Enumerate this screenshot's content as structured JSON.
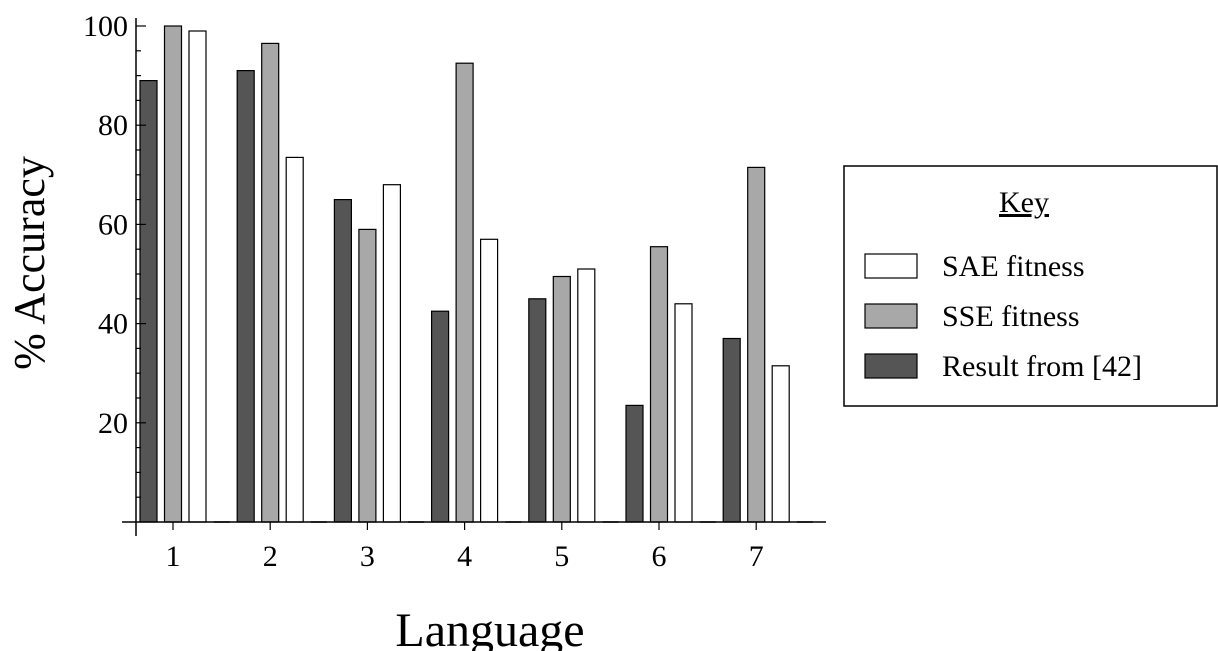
{
  "chart_data": {
    "type": "bar",
    "categories": [
      "1",
      "2",
      "3",
      "4",
      "5",
      "6",
      "7"
    ],
    "series": [
      {
        "name": "Result from [42]",
        "values": [
          89,
          91,
          65,
          42.5,
          45,
          23.5,
          37
        ],
        "color": "#555555"
      },
      {
        "name": "SSE fitness",
        "values": [
          100,
          96.5,
          59,
          92.5,
          49.5,
          55.5,
          71.5
        ],
        "color": "#a8a8a8"
      },
      {
        "name": "SAE fitness",
        "values": [
          99,
          73.5,
          68,
          57,
          51,
          44,
          31.5
        ],
        "color": "#ffffff"
      }
    ],
    "title": "",
    "xlabel": "Language",
    "ylabel": "% Accuracy",
    "ylim": [
      0,
      100
    ],
    "yticks": [
      "20",
      "40",
      "60",
      "80",
      "100"
    ],
    "grid": false,
    "legend": {
      "title": "Key",
      "placement": "right",
      "entries": [
        "SAE fitness",
        "SSE fitness",
        "Result from [42]"
      ]
    }
  }
}
